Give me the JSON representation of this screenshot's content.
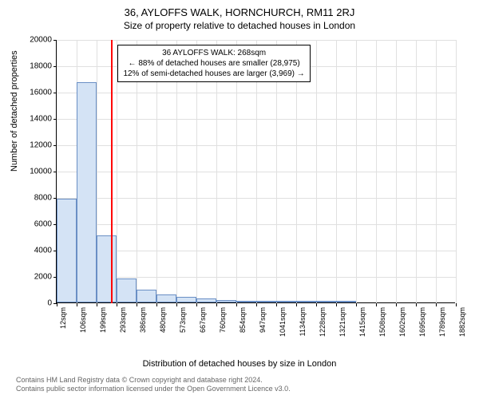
{
  "title_main": "36, AYLOFFS WALK, HORNCHURCH, RM11 2RJ",
  "title_sub": "Size of property relative to detached houses in London",
  "y_axis": {
    "label": "Number of detached properties",
    "min": 0,
    "max": 20000,
    "step": 2000,
    "ticks": [
      0,
      2000,
      4000,
      6000,
      8000,
      10000,
      12000,
      14000,
      16000,
      18000,
      20000
    ]
  },
  "x_axis": {
    "label": "Distribution of detached houses by size in London",
    "ticks": [
      "12sqm",
      "106sqm",
      "199sqm",
      "293sqm",
      "386sqm",
      "480sqm",
      "573sqm",
      "667sqm",
      "760sqm",
      "854sqm",
      "947sqm",
      "1041sqm",
      "1134sqm",
      "1228sqm",
      "1321sqm",
      "1415sqm",
      "1508sqm",
      "1602sqm",
      "1695sqm",
      "1789sqm",
      "1882sqm"
    ],
    "min": 12,
    "max": 1882
  },
  "histogram": {
    "type": "histogram",
    "bar_fill": "#d4e3f5",
    "bar_stroke": "#6a8fc5",
    "bin_width": 93.5,
    "values": [
      7900,
      16700,
      5100,
      1800,
      1000,
      600,
      400,
      300,
      200,
      150,
      100,
      80,
      60,
      50,
      40,
      30,
      20,
      15,
      10,
      5
    ]
  },
  "marker": {
    "value": 268,
    "color": "#ff0000"
  },
  "annotation": {
    "line1": "36 AYLOFFS WALK: 268sqm",
    "line2": "← 88% of detached houses are smaller (28,975)",
    "line3": "12% of semi-detached houses are larger (3,969) →"
  },
  "footer": {
    "line1": "Contains HM Land Registry data © Crown copyright and database right 2024.",
    "line2": "Contains public sector information licensed under the Open Government Licence v3.0."
  },
  "colors": {
    "background": "#ffffff",
    "grid": "#e0e0e0",
    "axis": "#000000",
    "text": "#000000",
    "footer_text": "#666666"
  }
}
